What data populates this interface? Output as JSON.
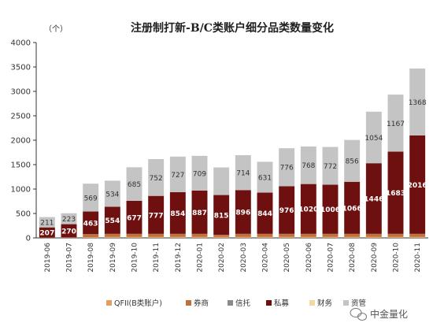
{
  "chart_data": {
    "type": "bar",
    "stacked": true,
    "title": "注册制打新-B/C类账户细分品类数量变化",
    "unit": "（个）",
    "ylim": [
      0,
      4000
    ],
    "yticks": [
      0,
      500,
      1000,
      1500,
      2000,
      2500,
      3000,
      3500,
      4000
    ],
    "categories": [
      "2019-06",
      "2019-07",
      "2019-08",
      "2019-09",
      "2019-10",
      "2019-11",
      "2019-12",
      "2020-01",
      "2020-02",
      "2020-03",
      "2020-04",
      "2020-05",
      "2020-06",
      "2020-07",
      "2020-08",
      "2020-09",
      "2020-10",
      "2020-11"
    ],
    "series": [
      {
        "name": "QFII(B类账户)",
        "color": "#e0a060",
        "values": [
          5,
          5,
          15,
          20,
          20,
          20,
          20,
          20,
          20,
          20,
          20,
          20,
          20,
          20,
          20,
          20,
          20,
          20
        ],
        "labeled": false
      },
      {
        "name": "券商",
        "color": "#c0703a",
        "values": [
          3,
          5,
          60,
          60,
          60,
          60,
          60,
          60,
          40,
          60,
          60,
          60,
          60,
          60,
          60,
          60,
          60,
          60
        ],
        "labeled": false
      },
      {
        "name": "信托",
        "color": "#8a8a8a",
        "values": [
          0,
          1,
          2,
          3,
          3,
          3,
          3,
          3,
          3,
          3,
          3,
          3,
          3,
          3,
          3,
          3,
          3,
          3
        ],
        "labeled": false
      },
      {
        "name": "私募",
        "color": "#6e1010",
        "values": [
          207,
          270,
          463,
          554,
          677,
          777,
          854,
          887,
          815,
          896,
          844,
          976,
          1020,
          1006,
          1066,
          1446,
          1683,
          2016
        ],
        "labeled": true
      },
      {
        "name": "财务",
        "color": "#f2d9a0",
        "values": [
          0,
          0,
          1,
          1,
          1,
          1,
          1,
          1,
          1,
          1,
          1,
          1,
          1,
          1,
          1,
          1,
          1,
          1
        ],
        "labeled": false
      },
      {
        "name": "资管",
        "color": "#c4c4c4",
        "values": [
          211,
          223,
          569,
          534,
          685,
          752,
          727,
          709,
          564,
          714,
          631,
          776,
          768,
          772,
          856,
          1054,
          1167,
          1368
        ],
        "labeled": true
      }
    ],
    "data_labels": {
      "私募": [
        "207",
        "270",
        "463",
        "554",
        "677",
        "777",
        "854",
        "887",
        "815",
        "896",
        "844",
        "976",
        "1020",
        "1006",
        "1066",
        "1446",
        "1683",
        "2016"
      ],
      "资管": [
        "211",
        "223",
        "569",
        "534",
        "685",
        "752",
        "727",
        "709",
        "",
        "714",
        "631",
        "776",
        "768",
        "772",
        "856",
        "1054",
        "1167",
        "1368"
      ]
    },
    "legend_position": "bottom",
    "grid": false
  },
  "watermark": {
    "text": "中金量化"
  }
}
